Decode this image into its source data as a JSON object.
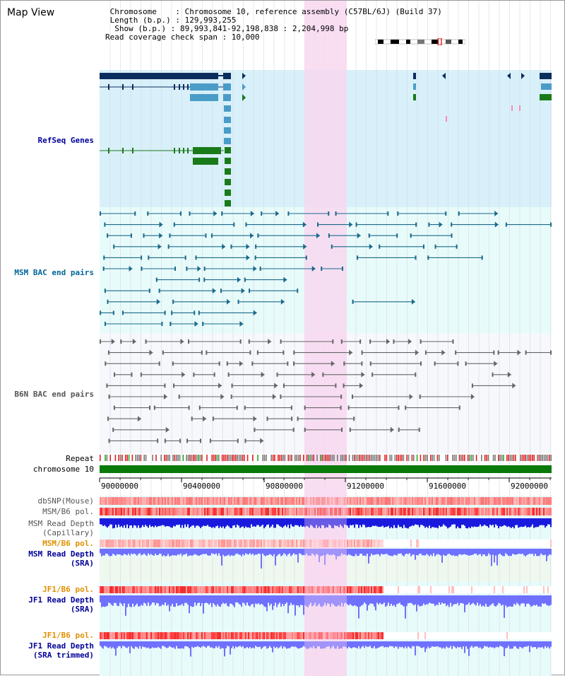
{
  "title": "Map View",
  "info": {
    "line1": " Chromosome    : Chromosome 10, reference assembly (C57BL/6J) (Build 37)",
    "line2": " Length (b.p.) : 129,993,255",
    "line3": "  Show (b.p.) : 89,993,841-92,198,838 : 2,204,998 bp",
    "line4": "Read coverage check span : 10,000"
  },
  "tracks": {
    "refseq": "RefSeq Genes",
    "msm_bac": "MSM BAC end pairs",
    "b6n_bac": "B6N BAC end pairs",
    "repeat": "Repeat",
    "chromosome": "chromosome 10",
    "dbsnp": "dbSNP(Mouse)",
    "msm_b6_pol": "MSM/B6 pol.",
    "msm_depth_cap": "MSM Read Depth\n(Capillary)",
    "msm_b6_pol2": "MSM/B6 pol.",
    "msm_depth_sra": "MSM Read Depth\n(SRA)",
    "jf1_b6_pol": "JF1/B6 pol.",
    "jf1_depth_sra": "JF1 Read Depth\n(SRA)",
    "jf1_b6_pol2": "JF1/B6 pol.",
    "jf1_depth_trim": "JF1 Read Depth\n(SRA trimmed)"
  },
  "scale_ticks": [
    "90000000",
    "90400000",
    "90800000",
    "91200000",
    "91600000",
    "92000000"
  ],
  "colors": {
    "refseq_bg": "#d8f0fa",
    "bac_bg": "#e8fbfb",
    "highlight": "#f8d8f0",
    "gene_dark": "#0b2d5e",
    "gene_light": "#4a9cc8",
    "gene_green": "#1a7a1a",
    "msm": "#1a6a8a",
    "b6n": "#666666",
    "depth_blue": "#1a1adf",
    "depth_light": "#7070ff",
    "label_blue": "#000099",
    "label_orange": "#e09000",
    "label_teal": "#006699"
  }
}
